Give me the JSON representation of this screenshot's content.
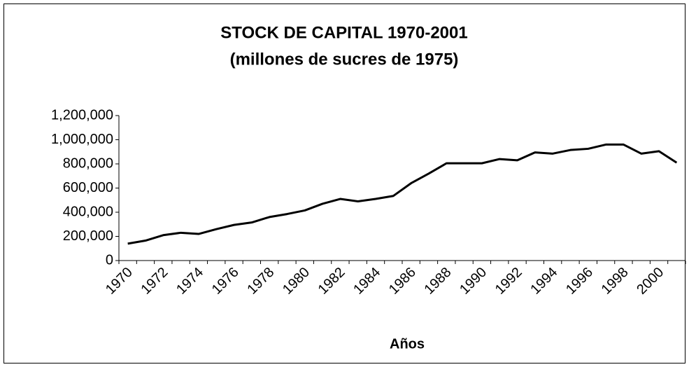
{
  "chart_data": {
    "type": "line",
    "title": "STOCK DE CAPITAL 1970-2001",
    "subtitle": "(millones de sucres de 1975)",
    "x_label": "Años",
    "categories": [
      "1970",
      null,
      "1972",
      null,
      "1974",
      null,
      "1976",
      null,
      "1978",
      null,
      "1980",
      null,
      "1982",
      null,
      "1984",
      null,
      "1986",
      null,
      "1988",
      null,
      "1990",
      null,
      "1992",
      null,
      "1994",
      null,
      "1996",
      null,
      "1998",
      null,
      "2000",
      null
    ],
    "series": [
      {
        "name": "Stock de capital",
        "color": "#000000",
        "values": [
          140000,
          165000,
          210000,
          230000,
          220000,
          260000,
          295000,
          315000,
          360000,
          385000,
          415000,
          470000,
          510000,
          490000,
          510000,
          535000,
          640000,
          720000,
          805000,
          805000,
          805000,
          840000,
          830000,
          895000,
          885000,
          915000,
          925000,
          960000,
          960000,
          885000,
          905000,
          810000
        ]
      }
    ],
    "ylim": [
      0,
      1200000
    ],
    "yticks": [
      0,
      {
        "value": 200000,
        "label": "200,000"
      },
      {
        "value": 400000,
        "label": "400,000"
      },
      {
        "value": 600000,
        "label": "600,000"
      },
      {
        "value": 800000,
        "label": "800,000"
      },
      {
        "value": 1000000,
        "label": "1,000,000"
      },
      {
        "value": 1200000,
        "label": "1,200,000"
      }
    ],
    "grid": false
  }
}
